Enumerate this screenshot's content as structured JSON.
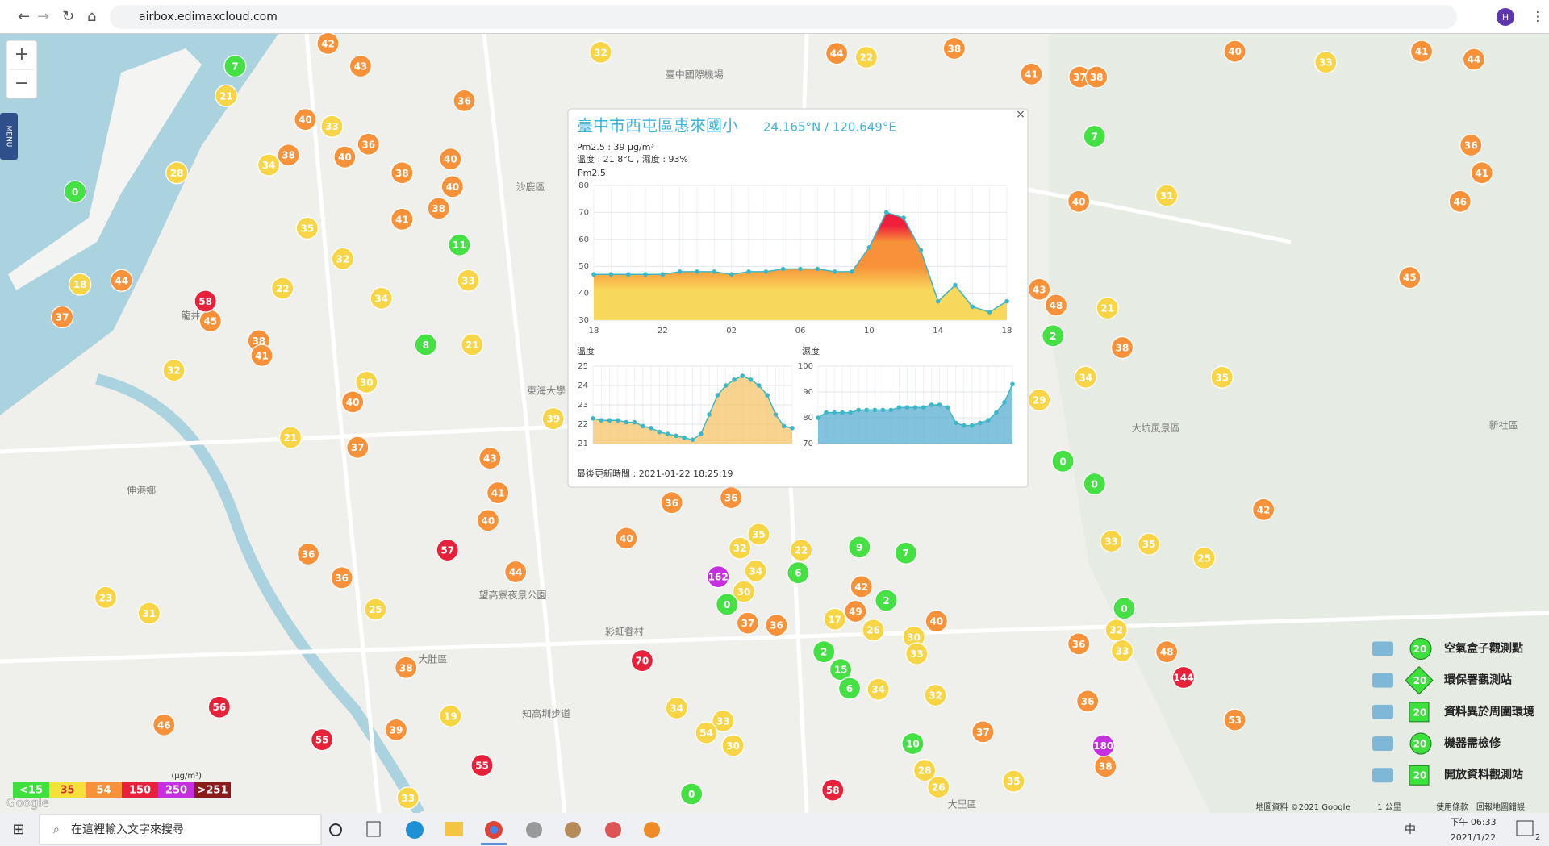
{
  "browser": {
    "url": "airbox.edimaxcloud.com",
    "profile": "H"
  },
  "map": {
    "zoom_in": "+",
    "zoom_out": "−",
    "menu": "MENU",
    "place_labels": [
      "臺中國際機場",
      "沙鹿區",
      "龍井",
      "東海大學",
      "伸港鄉",
      "大肚區",
      "彩虹眷村",
      "望高寮夜景公園",
      "大坑風景區",
      "新社區",
      "知高圳步道",
      "大里區"
    ],
    "markers": [
      {
        "color": "#f7923a",
        "values": [
          42,
          43,
          36,
          40,
          38,
          40,
          36,
          38,
          40,
          40,
          38,
          41,
          44,
          37,
          45,
          38,
          41,
          40,
          37,
          43,
          41,
          40,
          36,
          36,
          44,
          38,
          46,
          39,
          38,
          44,
          37,
          38,
          41,
          40,
          41,
          44,
          36,
          41,
          46,
          40,
          43,
          48,
          38,
          42,
          36,
          40,
          36,
          37,
          36,
          49,
          42,
          40,
          36,
          48,
          38,
          37,
          53,
          36,
          45
        ]
      },
      {
        "color": "#f7d547",
        "values": [
          32,
          22,
          21,
          33,
          28,
          34,
          35,
          32,
          22,
          18,
          34,
          33,
          21,
          30,
          32,
          21,
          39,
          23,
          31,
          25,
          33,
          31,
          21,
          34,
          35,
          29,
          25,
          35,
          33,
          22,
          35,
          32,
          34,
          30,
          17,
          26,
          30,
          33,
          33,
          32,
          34,
          33,
          54,
          30,
          28,
          26,
          32,
          34,
          19,
          33,
          35
        ]
      },
      {
        "color": "#44e044",
        "values": [
          7,
          0,
          8,
          11,
          7,
          2,
          0,
          0,
          9,
          7,
          2,
          0,
          2,
          15,
          6,
          10,
          0,
          0,
          6
        ]
      },
      {
        "color": "#e8213b",
        "values": [
          58,
          57,
          70,
          56,
          55,
          58,
          144,
          55
        ]
      },
      {
        "color": "#c62fe0",
        "values": [
          162,
          180
        ]
      }
    ],
    "footer": [
      "地圖資料 ©2021 Google",
      "1 公里",
      "使用條款",
      "回報地圖錯誤"
    ],
    "logo": "Google"
  },
  "legend_scale": {
    "unit": "(μg/m³)",
    "items": [
      {
        "label": "<15",
        "color": "#3ee03e"
      },
      {
        "label": "35",
        "color": "#f5e13a"
      },
      {
        "label": "54",
        "color": "#f7923a"
      },
      {
        "label": "150",
        "color": "#e8213b"
      },
      {
        "label": "250",
        "color": "#c62fe0"
      },
      {
        "label": ">251",
        "color": "#8b1a1a"
      }
    ]
  },
  "legend_types": {
    "badge": "20",
    "items": [
      "空氣盒子觀測點",
      "環保署觀測站",
      "資料異於周圍環境",
      "機器需檢修",
      "開放資料觀測站"
    ]
  },
  "popup": {
    "close": "×",
    "title": "臺中市西屯區惠來國小",
    "coords": "24.165°N / 120.649°E",
    "pm25_line": "Pm2.5 : 39 μg/m³",
    "temp_humidity_line": "溫度 : 21.8°C , 濕度 : 93%",
    "update": "最後更新時間 : 2021-01-22 18:25:19"
  },
  "chart_data": [
    {
      "type": "area",
      "title": "Pm2.5",
      "color": "#3fb6c6",
      "categories": [
        "18",
        null,
        null,
        null,
        "22",
        null,
        null,
        null,
        "02",
        null,
        null,
        null,
        "06",
        null,
        null,
        null,
        "10",
        null,
        null,
        null,
        "14",
        null,
        null,
        null,
        "18"
      ],
      "values": [
        47,
        47,
        47,
        47,
        47,
        48,
        48,
        48,
        47,
        48,
        48,
        49,
        49,
        49,
        48,
        48,
        57,
        70,
        68,
        56,
        37,
        43,
        35,
        33,
        37
      ],
      "ylim": [
        30,
        80
      ],
      "yticks": [
        30,
        40,
        50,
        60,
        70,
        80
      ],
      "grid": true
    },
    {
      "type": "area",
      "title": "溫度",
      "color": "#3fb6c6",
      "fill": "#f5c46a",
      "values": [
        22.3,
        22.2,
        22.2,
        22.2,
        22.1,
        22.1,
        21.9,
        21.8,
        21.6,
        21.5,
        21.4,
        21.3,
        21.2,
        21.5,
        22.5,
        23.5,
        24.0,
        24.3,
        24.5,
        24.3,
        24.0,
        23.5,
        22.5,
        21.9,
        21.8
      ],
      "ylim": [
        21,
        25
      ],
      "yticks": [
        21,
        22,
        23,
        24,
        25
      ],
      "grid": true
    },
    {
      "type": "area",
      "title": "濕度",
      "color": "#3fb6c6",
      "fill": "#5aaed0",
      "values": [
        80,
        82,
        82,
        82,
        82,
        83,
        83,
        83,
        83,
        83,
        84,
        84,
        84,
        84,
        85,
        85,
        84,
        78,
        77,
        77,
        78,
        79,
        82,
        86,
        93
      ],
      "ylim": [
        70,
        100
      ],
      "yticks": [
        70,
        80,
        90,
        100
      ],
      "grid": true
    }
  ],
  "taskbar": {
    "search": "在這裡輸入文字來搜尋",
    "ime": "中",
    "time": "下午 06:33",
    "date": "2021/1/22",
    "notifications": "2"
  }
}
